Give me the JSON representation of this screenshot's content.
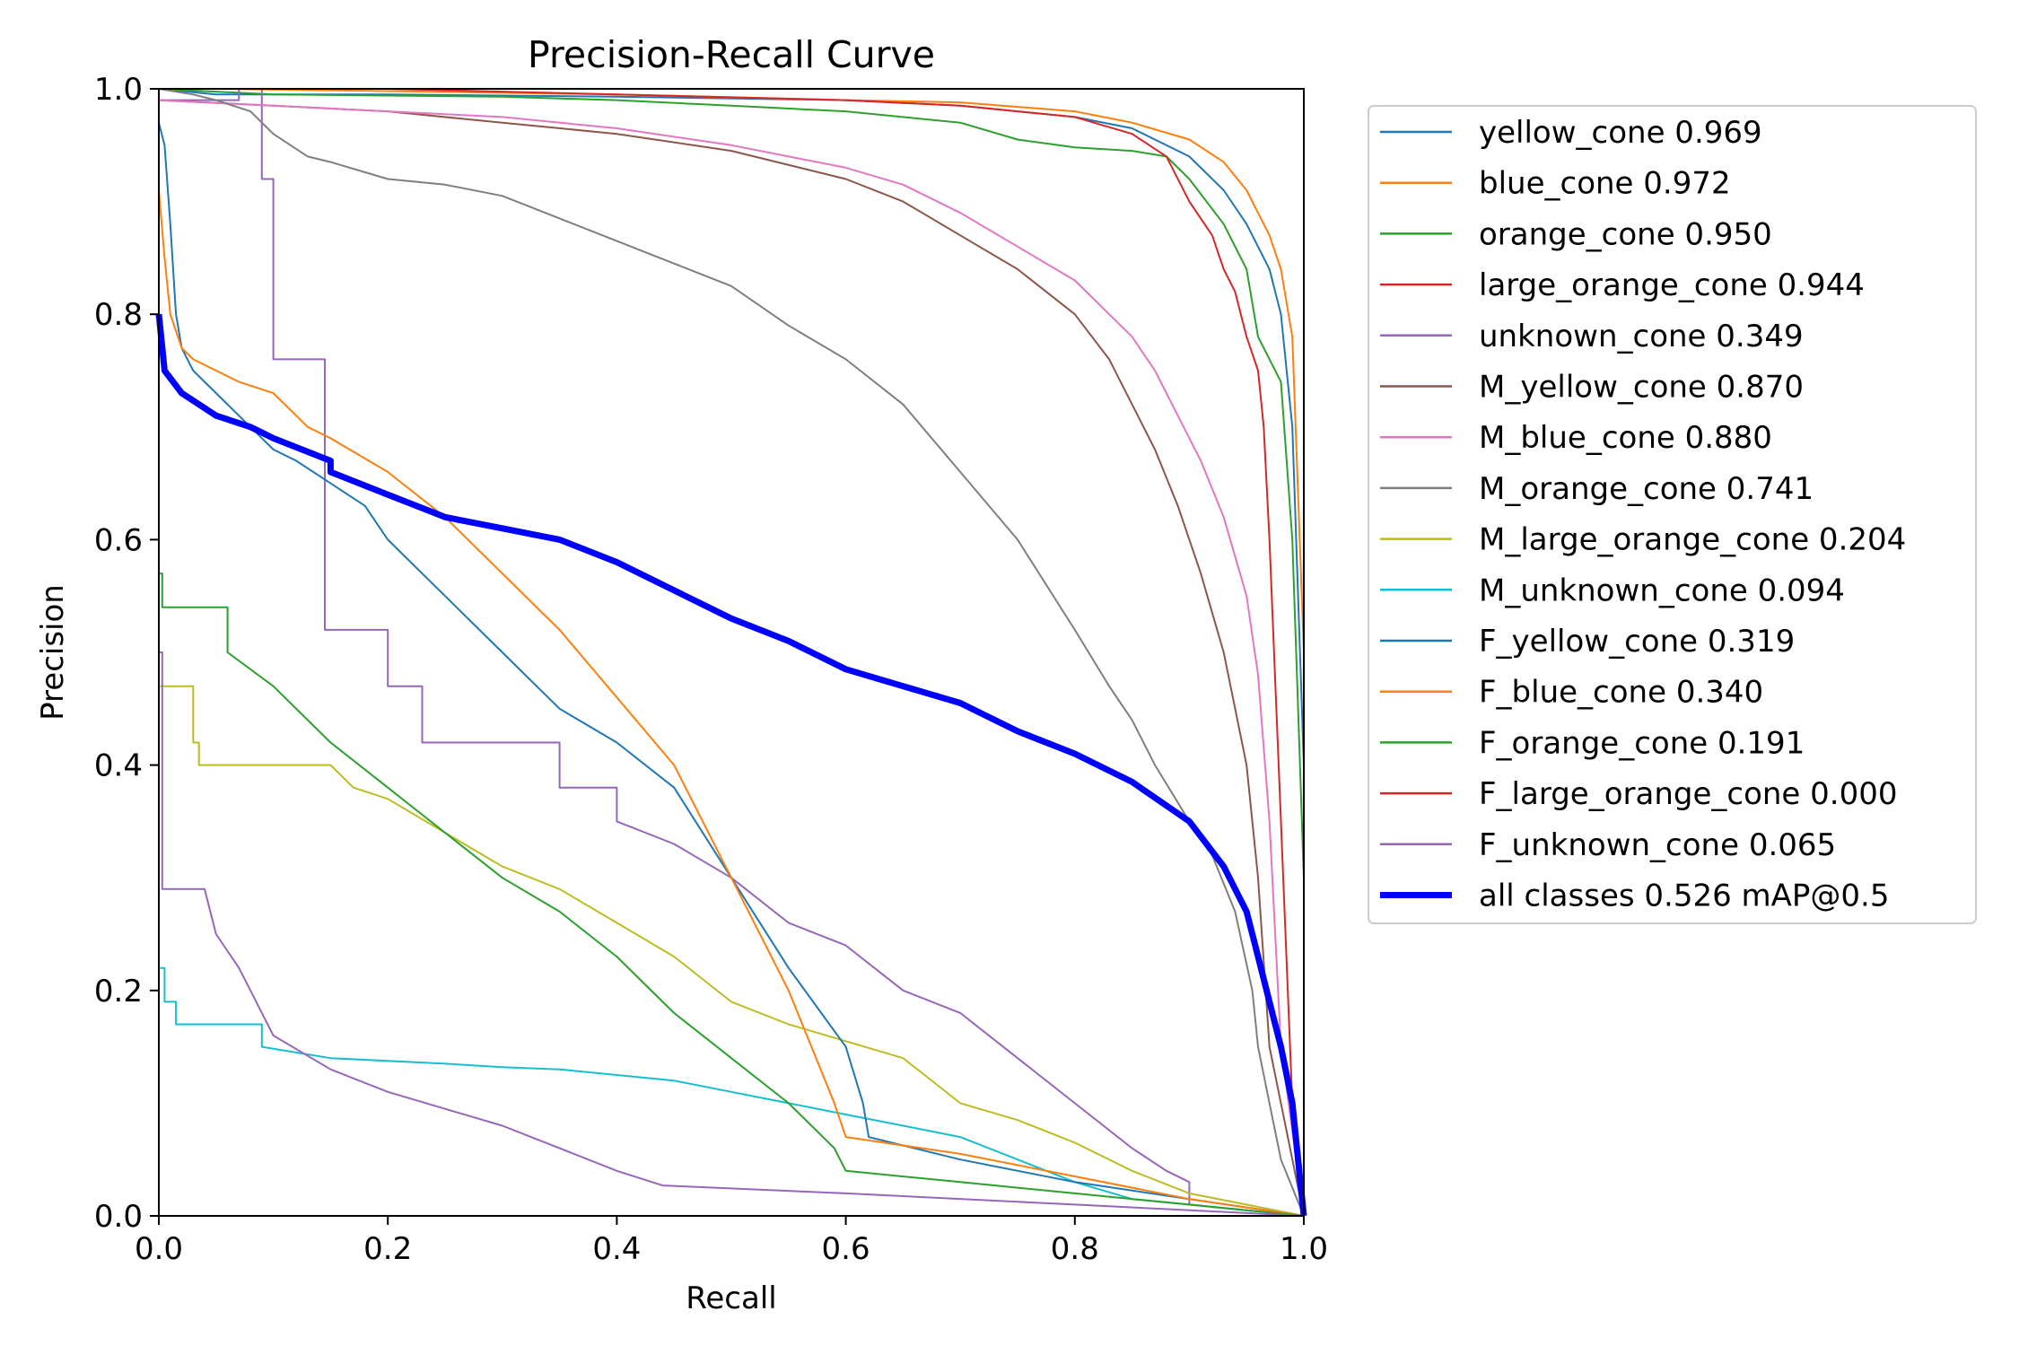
{
  "chart_data": {
    "type": "line",
    "title": "Precision-Recall Curve",
    "xlabel": "Recall",
    "ylabel": "Precision",
    "xlim": [
      0,
      1
    ],
    "ylim": [
      0,
      1
    ],
    "xticks": [
      "0.0",
      "0.2",
      "0.4",
      "0.6",
      "0.8",
      "1.0"
    ],
    "yticks": [
      "0.0",
      "0.2",
      "0.4",
      "0.6",
      "0.8",
      "1.0"
    ],
    "grid": false,
    "legend_position": "outside-right-top",
    "series": [
      {
        "name": "yellow_cone 0.969",
        "color": "#1f77b4",
        "width": 2,
        "x": [
          0,
          0.05,
          0.2,
          0.4,
          0.6,
          0.7,
          0.8,
          0.85,
          0.9,
          0.93,
          0.95,
          0.97,
          0.98,
          0.99,
          1.0,
          1.0
        ],
        "y": [
          1.0,
          0.995,
          0.995,
          0.993,
          0.99,
          0.985,
          0.975,
          0.965,
          0.94,
          0.91,
          0.88,
          0.84,
          0.8,
          0.7,
          0.4,
          0.0
        ]
      },
      {
        "name": "blue_cone 0.972",
        "color": "#ff7f0e",
        "width": 2,
        "x": [
          0,
          0.05,
          0.2,
          0.4,
          0.6,
          0.7,
          0.8,
          0.85,
          0.9,
          0.93,
          0.95,
          0.97,
          0.98,
          0.99,
          1.0,
          1.0
        ],
        "y": [
          1.0,
          1.0,
          0.998,
          0.995,
          0.99,
          0.988,
          0.98,
          0.97,
          0.955,
          0.935,
          0.91,
          0.87,
          0.84,
          0.78,
          0.5,
          0.0
        ]
      },
      {
        "name": "orange_cone 0.950",
        "color": "#2ca02c",
        "width": 2,
        "x": [
          0,
          0.1,
          0.3,
          0.4,
          0.5,
          0.6,
          0.7,
          0.75,
          0.8,
          0.85,
          0.88,
          0.9,
          0.93,
          0.95,
          0.96,
          0.98,
          0.99,
          1.0,
          1.0
        ],
        "y": [
          1.0,
          0.995,
          0.993,
          0.99,
          0.985,
          0.98,
          0.97,
          0.955,
          0.948,
          0.945,
          0.94,
          0.92,
          0.88,
          0.84,
          0.78,
          0.74,
          0.6,
          0.3,
          0.0
        ]
      },
      {
        "name": "large_orange_cone 0.944",
        "color": "#d62728",
        "width": 2,
        "x": [
          0,
          0.2,
          0.4,
          0.6,
          0.7,
          0.75,
          0.8,
          0.85,
          0.88,
          0.9,
          0.92,
          0.93,
          0.94,
          0.95,
          0.96,
          0.965,
          0.97,
          0.98,
          0.99,
          1.0
        ],
        "y": [
          1.0,
          1.0,
          0.995,
          0.99,
          0.985,
          0.98,
          0.975,
          0.96,
          0.94,
          0.9,
          0.87,
          0.84,
          0.82,
          0.78,
          0.75,
          0.7,
          0.6,
          0.35,
          0.1,
          0.0
        ]
      },
      {
        "name": "unknown_cone 0.349",
        "color": "#9467bd",
        "width": 2,
        "x": [
          0.0,
          0.0,
          0.07,
          0.07,
          0.09,
          0.09,
          0.1,
          0.1,
          0.145,
          0.145,
          0.2,
          0.2,
          0.23,
          0.23,
          0.35,
          0.35,
          0.4,
          0.4,
          0.45,
          0.5,
          0.55,
          0.6,
          0.65,
          0.7,
          0.75,
          0.8,
          0.85,
          0.88,
          0.9,
          0.9,
          1.0
        ],
        "y": [
          1.0,
          0.99,
          0.99,
          1.0,
          1.0,
          0.92,
          0.92,
          0.76,
          0.76,
          0.52,
          0.52,
          0.47,
          0.47,
          0.42,
          0.42,
          0.38,
          0.38,
          0.35,
          0.33,
          0.3,
          0.26,
          0.24,
          0.2,
          0.18,
          0.14,
          0.1,
          0.06,
          0.04,
          0.03,
          0.01,
          0.0
        ]
      },
      {
        "name": "M_yellow_cone 0.870",
        "color": "#8c564b",
        "width": 2,
        "x": [
          0,
          0.1,
          0.2,
          0.3,
          0.4,
          0.5,
          0.6,
          0.65,
          0.7,
          0.75,
          0.8,
          0.83,
          0.85,
          0.87,
          0.89,
          0.91,
          0.93,
          0.95,
          0.96,
          0.97,
          1.0
        ],
        "y": [
          0.99,
          0.985,
          0.98,
          0.97,
          0.96,
          0.945,
          0.92,
          0.9,
          0.87,
          0.84,
          0.8,
          0.76,
          0.72,
          0.68,
          0.63,
          0.57,
          0.5,
          0.4,
          0.3,
          0.15,
          0.0
        ]
      },
      {
        "name": "M_blue_cone 0.880",
        "color": "#e377c2",
        "width": 2,
        "x": [
          0,
          0.1,
          0.2,
          0.3,
          0.4,
          0.5,
          0.6,
          0.65,
          0.7,
          0.75,
          0.8,
          0.83,
          0.85,
          0.87,
          0.89,
          0.91,
          0.93,
          0.95,
          0.96,
          0.97,
          0.98,
          1.0
        ],
        "y": [
          0.99,
          0.985,
          0.98,
          0.975,
          0.965,
          0.95,
          0.93,
          0.915,
          0.89,
          0.86,
          0.83,
          0.8,
          0.78,
          0.75,
          0.71,
          0.67,
          0.62,
          0.55,
          0.48,
          0.35,
          0.15,
          0.0
        ]
      },
      {
        "name": "M_orange_cone 0.741",
        "color": "#7f7f7f",
        "width": 2,
        "x": [
          0.0,
          0.03,
          0.05,
          0.08,
          0.1,
          0.13,
          0.15,
          0.2,
          0.25,
          0.3,
          0.35,
          0.4,
          0.45,
          0.5,
          0.55,
          0.6,
          0.65,
          0.7,
          0.75,
          0.8,
          0.83,
          0.85,
          0.87,
          0.9,
          0.92,
          0.94,
          0.955,
          0.96,
          0.97,
          0.98,
          1.0
        ],
        "y": [
          1.0,
          0.995,
          0.99,
          0.98,
          0.96,
          0.94,
          0.935,
          0.92,
          0.915,
          0.905,
          0.885,
          0.865,
          0.845,
          0.825,
          0.79,
          0.76,
          0.72,
          0.66,
          0.6,
          0.52,
          0.47,
          0.44,
          0.4,
          0.35,
          0.32,
          0.27,
          0.2,
          0.15,
          0.1,
          0.05,
          0.0
        ]
      },
      {
        "name": "M_large_orange_cone 0.204",
        "color": "#bcbd22",
        "width": 2,
        "x": [
          0.0,
          0.03,
          0.03,
          0.035,
          0.035,
          0.08,
          0.15,
          0.17,
          0.2,
          0.25,
          0.3,
          0.35,
          0.4,
          0.45,
          0.5,
          0.55,
          0.6,
          0.65,
          0.7,
          0.75,
          0.8,
          0.85,
          0.9,
          1.0
        ],
        "y": [
          0.47,
          0.47,
          0.42,
          0.42,
          0.4,
          0.4,
          0.4,
          0.38,
          0.37,
          0.34,
          0.31,
          0.29,
          0.26,
          0.23,
          0.19,
          0.17,
          0.155,
          0.14,
          0.1,
          0.085,
          0.065,
          0.04,
          0.02,
          0.0
        ]
      },
      {
        "name": "M_unknown_cone 0.094",
        "color": "#17becf",
        "width": 2,
        "x": [
          0.0,
          0.005,
          0.005,
          0.015,
          0.015,
          0.09,
          0.09,
          0.15,
          0.25,
          0.3,
          0.35,
          0.4,
          0.45,
          0.5,
          0.55,
          0.6,
          0.65,
          0.7,
          0.75,
          0.8,
          0.85,
          1.0
        ],
        "y": [
          0.22,
          0.22,
          0.19,
          0.19,
          0.17,
          0.17,
          0.15,
          0.14,
          0.135,
          0.132,
          0.13,
          0.125,
          0.12,
          0.11,
          0.1,
          0.09,
          0.08,
          0.07,
          0.05,
          0.03,
          0.015,
          0.0
        ]
      },
      {
        "name": "F_yellow_cone 0.319",
        "color": "#1f77b4",
        "width": 2,
        "x": [
          0.0,
          0.005,
          0.01,
          0.015,
          0.02,
          0.03,
          0.05,
          0.08,
          0.1,
          0.12,
          0.15,
          0.18,
          0.2,
          0.25,
          0.3,
          0.35,
          0.4,
          0.45,
          0.5,
          0.55,
          0.6,
          0.615,
          0.62,
          0.7,
          0.8,
          0.9,
          1.0
        ],
        "y": [
          0.97,
          0.95,
          0.88,
          0.8,
          0.77,
          0.75,
          0.73,
          0.7,
          0.68,
          0.67,
          0.65,
          0.63,
          0.6,
          0.55,
          0.5,
          0.45,
          0.42,
          0.38,
          0.3,
          0.22,
          0.15,
          0.1,
          0.07,
          0.05,
          0.03,
          0.015,
          0.0
        ]
      },
      {
        "name": "F_blue_cone 0.340",
        "color": "#ff7f0e",
        "width": 2,
        "x": [
          0.0,
          0.005,
          0.01,
          0.02,
          0.03,
          0.05,
          0.07,
          0.1,
          0.13,
          0.15,
          0.2,
          0.25,
          0.3,
          0.35,
          0.4,
          0.45,
          0.5,
          0.55,
          0.59,
          0.6,
          0.7,
          0.8,
          0.9,
          1.0
        ],
        "y": [
          0.91,
          0.85,
          0.8,
          0.77,
          0.76,
          0.75,
          0.74,
          0.73,
          0.7,
          0.69,
          0.66,
          0.62,
          0.57,
          0.52,
          0.46,
          0.4,
          0.3,
          0.2,
          0.1,
          0.07,
          0.055,
          0.035,
          0.015,
          0.0
        ]
      },
      {
        "name": "F_orange_cone 0.191",
        "color": "#2ca02c",
        "width": 2,
        "x": [
          0.0,
          0.003,
          0.003,
          0.06,
          0.06,
          0.1,
          0.15,
          0.2,
          0.25,
          0.3,
          0.35,
          0.4,
          0.45,
          0.5,
          0.55,
          0.59,
          0.6,
          0.7,
          0.8,
          0.9,
          1.0
        ],
        "y": [
          0.57,
          0.57,
          0.54,
          0.54,
          0.5,
          0.47,
          0.42,
          0.38,
          0.34,
          0.3,
          0.27,
          0.23,
          0.18,
          0.14,
          0.1,
          0.06,
          0.04,
          0.03,
          0.02,
          0.01,
          0.0
        ]
      },
      {
        "name": "F_large_orange_cone 0.000",
        "color": "#d62728",
        "width": 2,
        "x": [
          0.0,
          0.0
        ],
        "y": [
          0.0,
          0.0
        ]
      },
      {
        "name": "F_unknown_cone 0.065",
        "color": "#9467bd",
        "width": 2,
        "x": [
          0.0,
          0.003,
          0.003,
          0.04,
          0.05,
          0.07,
          0.08,
          0.1,
          0.15,
          0.2,
          0.25,
          0.3,
          0.35,
          0.4,
          0.44,
          0.6,
          0.8,
          1.0
        ],
        "y": [
          0.5,
          0.5,
          0.29,
          0.29,
          0.25,
          0.22,
          0.2,
          0.16,
          0.13,
          0.11,
          0.095,
          0.08,
          0.06,
          0.04,
          0.027,
          0.02,
          0.01,
          0.0
        ]
      },
      {
        "name": "all classes 0.526 mAP@0.5",
        "color": "#0000ff",
        "width": 7,
        "x": [
          0.0,
          0.005,
          0.02,
          0.05,
          0.08,
          0.1,
          0.15,
          0.15,
          0.2,
          0.25,
          0.3,
          0.35,
          0.4,
          0.45,
          0.5,
          0.55,
          0.6,
          0.65,
          0.7,
          0.75,
          0.8,
          0.85,
          0.9,
          0.93,
          0.95,
          0.96,
          0.97,
          0.98,
          0.99,
          1.0
        ],
        "y": [
          0.8,
          0.75,
          0.73,
          0.71,
          0.7,
          0.69,
          0.67,
          0.66,
          0.64,
          0.62,
          0.61,
          0.6,
          0.58,
          0.555,
          0.53,
          0.51,
          0.485,
          0.47,
          0.455,
          0.43,
          0.41,
          0.385,
          0.35,
          0.31,
          0.27,
          0.23,
          0.19,
          0.15,
          0.1,
          0.0
        ]
      }
    ]
  }
}
